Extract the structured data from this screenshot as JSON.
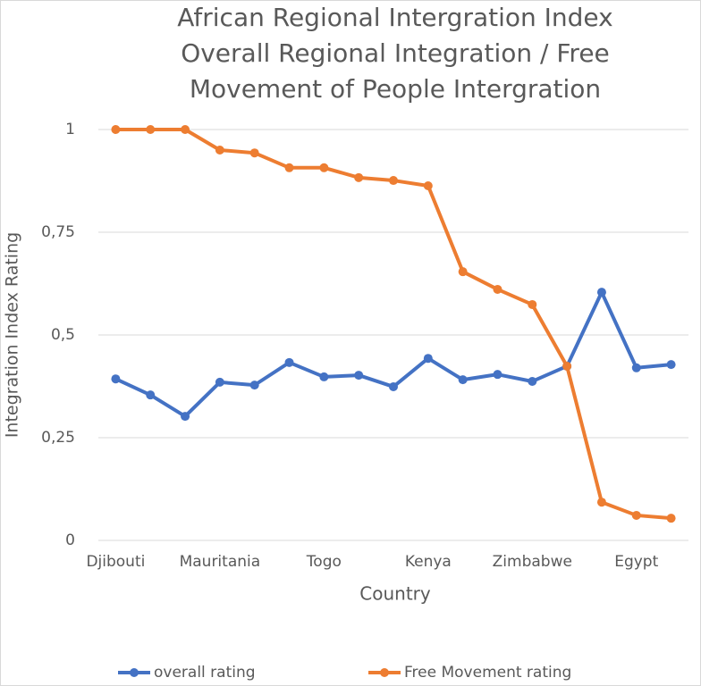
{
  "chart_data": {
    "type": "line",
    "title": [
      "African Regional Intergration Index",
      "Overall Regional Integration / Free",
      "Movement of People Intergration"
    ],
    "x_label": "Country",
    "y_label": "Integration Index Rating",
    "categories": [
      "Djibouti",
      null,
      null,
      "Mauritania",
      null,
      null,
      "Togo",
      null,
      null,
      "Kenya",
      null,
      null,
      "Zimbabwe",
      null,
      null,
      "Egypt",
      null
    ],
    "series": [
      {
        "name": "overall rating",
        "color": "#4472c4",
        "values": [
          0.393,
          0.354,
          0.302,
          0.385,
          0.378,
          0.433,
          0.398,
          0.402,
          0.374,
          0.443,
          0.391,
          0.404,
          0.387,
          0.424,
          0.604,
          0.42,
          0.428
        ]
      },
      {
        "name": "Free Movement rating",
        "color": "#ed7d31",
        "values": [
          1,
          1,
          1,
          0.95,
          0.943,
          0.907,
          0.907,
          0.883,
          0.876,
          0.863,
          0.654,
          0.611,
          0.574,
          0.424,
          0.093,
          0.061,
          0.054
        ]
      }
    ],
    "ylim": [
      0,
      1
    ],
    "yticks": [
      0,
      {
        "value": 0.25,
        "label": "0,25"
      },
      {
        "value": 0.5,
        "label": "0,5"
      },
      {
        "value": 0.75,
        "label": "0,75"
      },
      1
    ],
    "grid": true,
    "legend": "bottom"
  }
}
